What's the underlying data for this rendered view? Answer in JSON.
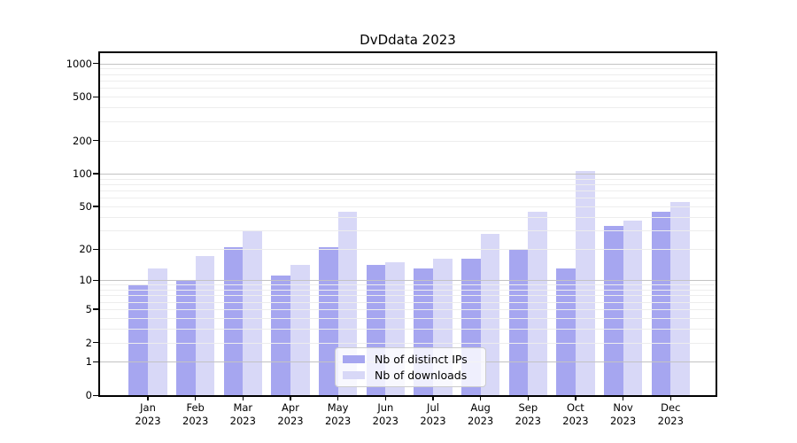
{
  "chart_data": {
    "type": "bar",
    "title": "DvDdata 2023",
    "categories": [
      "Jan\n2023",
      "Feb\n2023",
      "Mar\n2023",
      "Apr\n2023",
      "May\n2023",
      "Jun\n2023",
      "Jul\n2023",
      "Aug\n2023",
      "Sep\n2023",
      "Oct\n2023",
      "Nov\n2023",
      "Dec\n2023"
    ],
    "series": [
      {
        "name": "Nb of distinct IPs",
        "color": "#a6a6f0",
        "values": [
          9,
          10,
          21,
          11,
          21,
          14,
          13,
          16,
          20,
          13,
          33,
          45
        ]
      },
      {
        "name": "Nb of downloads",
        "color": "#d8d8f7",
        "values": [
          13,
          17,
          30,
          14,
          45,
          15,
          16,
          28,
          45,
          105,
          37,
          55
        ]
      }
    ],
    "yticks": [
      0,
      1,
      2,
      5,
      10,
      20,
      50,
      100,
      200,
      500,
      1000
    ],
    "yscale": "log1p",
    "ylim": [
      0,
      1240
    ],
    "xlabel": "",
    "ylabel": "",
    "grid": true,
    "legend_position": "lower center"
  },
  "colors": {
    "major_grid": "#c3c3c3",
    "minor_grid": "#ededed",
    "frame": "#000000",
    "legend_border": "#cccccc"
  }
}
